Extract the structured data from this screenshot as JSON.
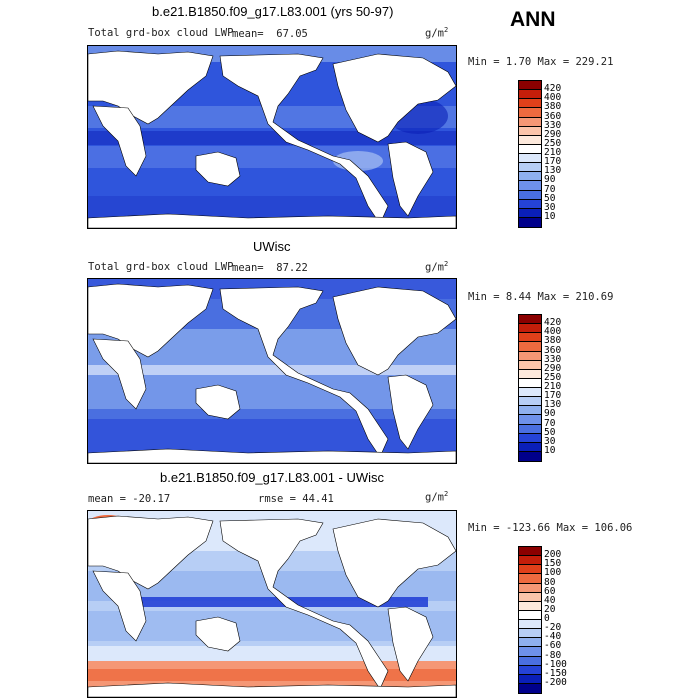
{
  "season": "ANN",
  "panels": [
    {
      "title": "b.e21.B1850.f09_g17.L83.001 (yrs 50-97)",
      "variable": "Total grd-box cloud LWP",
      "stat_left": "mean=",
      "stat_left_value": "67.05",
      "stat_right": "",
      "units": "g/m",
      "units_sup": "2",
      "minmax": "Min =    1.70 Max = 229.21",
      "colorbar_levels": [
        "420",
        "400",
        "380",
        "360",
        "330",
        "290",
        "250",
        "210",
        "170",
        "130",
        "90",
        "70",
        "50",
        "30",
        "10"
      ]
    },
    {
      "title": "UWisc",
      "variable": "Total grd-box cloud LWP",
      "stat_left": "mean=",
      "stat_left_value": "87.22",
      "stat_right": "",
      "units": "g/m",
      "units_sup": "2",
      "minmax": "Min =    8.44 Max = 210.69",
      "colorbar_levels": [
        "420",
        "400",
        "380",
        "360",
        "330",
        "290",
        "250",
        "210",
        "170",
        "130",
        "90",
        "70",
        "50",
        "30",
        "10"
      ]
    },
    {
      "title": "b.e21.B1850.f09_g17.L83.001 - UWisc",
      "variable": "",
      "stat_left": "mean = -20.17",
      "stat_left_value": "",
      "stat_right": "rmse =  44.41",
      "units": "g/m",
      "units_sup": "2",
      "minmax": "Min = -123.66 Max = 106.06",
      "colorbar_levels": [
        "200",
        "150",
        "100",
        "80",
        "60",
        "40",
        "20",
        "0",
        "-20",
        "-40",
        "-60",
        "-80",
        "-100",
        "-150",
        "-200"
      ]
    }
  ],
  "colors": {
    "abs_scale": [
      "#8b0000",
      "#c41e0a",
      "#e0401a",
      "#ee6a3f",
      "#f59775",
      "#fbc4aa",
      "#fde9dc",
      "#ffffff",
      "#dce8fb",
      "#b7cef5",
      "#8fb0ee",
      "#6e91ea",
      "#4a6fe0",
      "#2543d6",
      "#0a1fb8",
      "#00008b"
    ],
    "diff_scale": [
      "#8b0000",
      "#c41e0a",
      "#e0401a",
      "#ee6a3f",
      "#f59775",
      "#fbc4aa",
      "#fde9dc",
      "#ffffff",
      "#dce8fb",
      "#b7cef5",
      "#8fb0ee",
      "#6e91ea",
      "#4a6fe0",
      "#2543d6",
      "#0a1fb8",
      "#00008b"
    ],
    "land": "#ffffff"
  }
}
